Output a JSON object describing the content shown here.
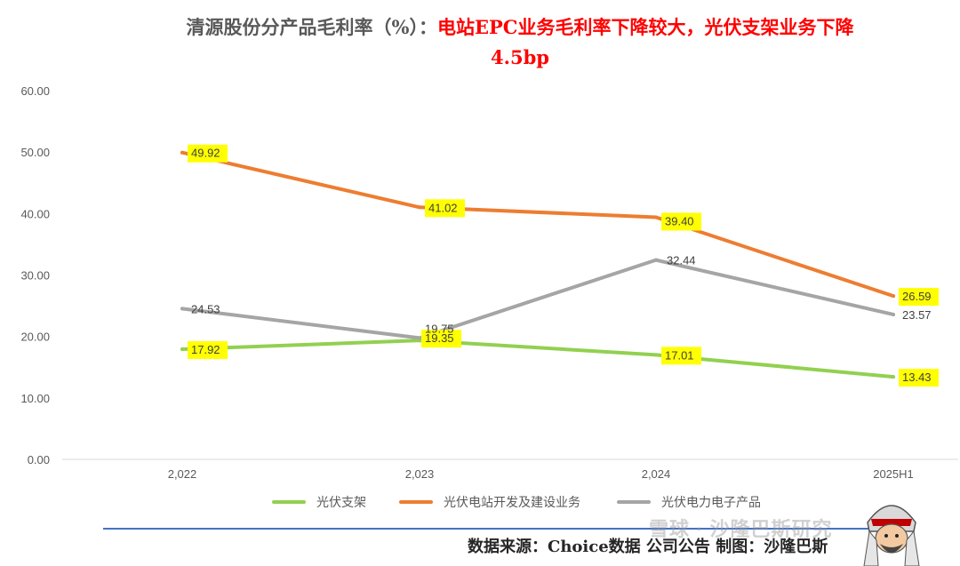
{
  "title": {
    "part1": "清源股份分产品毛利率（%）：",
    "part2": "电站EPC业务毛利率下降较大，光伏支架业务下降",
    "line2": "4.5bp"
  },
  "chart_data": {
    "type": "line",
    "categories": [
      "2,022",
      "2,023",
      "2,024",
      "2025H1"
    ],
    "ylim": [
      0,
      60
    ],
    "yticks": [
      "0.00",
      "10.00",
      "20.00",
      "30.00",
      "40.00",
      "50.00",
      "60.00"
    ],
    "grid": false,
    "legend_position": "bottom",
    "series": [
      {
        "name": "光伏支架",
        "color": "#92d050",
        "values": [
          17.92,
          19.35,
          17.01,
          13.43
        ],
        "labels": [
          "17.92",
          "19.35",
          "17.01",
          "13.43"
        ],
        "highlight": true
      },
      {
        "name": "光伏电站开发及建设业务",
        "color": "#ed7d31",
        "values": [
          49.92,
          41.02,
          39.4,
          26.59
        ],
        "labels": [
          "49.92",
          "41.02",
          "39.40",
          "26.59"
        ],
        "highlight": true
      },
      {
        "name": "光伏电力电子产品",
        "color": "#a5a5a5",
        "values": [
          24.53,
          19.75,
          32.44,
          23.57
        ],
        "labels": [
          "24.53",
          "19.75",
          "32.44",
          "23.57"
        ],
        "highlight": false
      }
    ]
  },
  "footer": {
    "source": "数据来源：Choice数据  公司公告  制图：沙隆巴斯",
    "watermark": "雪球 · 沙隆巴斯研究"
  },
  "colors": {
    "label_highlight": "#ffff00",
    "title_red": "#ff0000",
    "footer_line": "#4472c4"
  }
}
